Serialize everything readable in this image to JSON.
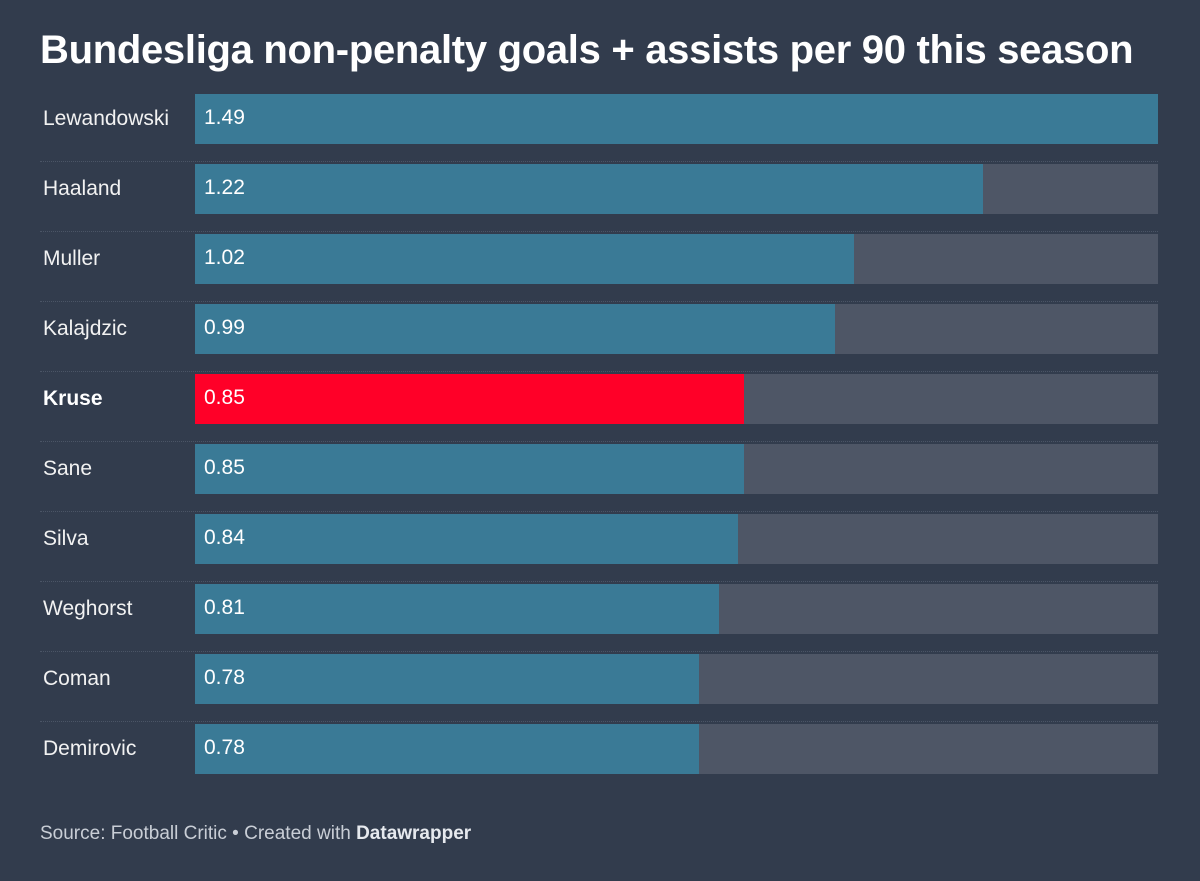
{
  "chart_data": {
    "type": "bar",
    "orientation": "horizontal",
    "title": "Bundesliga non-penalty goals + assists per 90 this season",
    "xlim": [
      0,
      1.49
    ],
    "categories": [
      "Lewandowski",
      "Haaland",
      "Muller",
      "Kalajdzic",
      "Kruse",
      "Sane",
      "Silva",
      "Weghorst",
      "Coman",
      "Demirovic"
    ],
    "values": [
      1.49,
      1.22,
      1.02,
      0.99,
      0.85,
      0.85,
      0.84,
      0.81,
      0.78,
      0.78
    ],
    "value_labels": [
      "1.49",
      "1.22",
      "1.02",
      "0.99",
      "0.85",
      "0.85",
      "0.84",
      "0.81",
      "0.78",
      "0.78"
    ],
    "highlight": "Kruse"
  },
  "colors": {
    "background": "#323c4d",
    "bar": "#3a7a96",
    "highlight_bar": "#ff0028",
    "track": "#4e5666"
  },
  "footer": {
    "source": "Source: Football Critic",
    "separator": " • ",
    "created_with": "Created with ",
    "brand": "Datawrapper"
  }
}
